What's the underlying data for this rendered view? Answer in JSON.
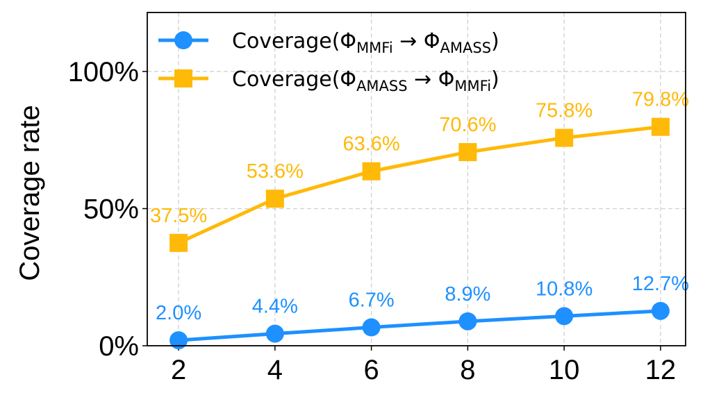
{
  "chart_data": {
    "type": "line",
    "title": "",
    "xlabel": "",
    "ylabel": "Coverage rate",
    "x": [
      2,
      4,
      6,
      8,
      10,
      12
    ],
    "xticks": [
      "2",
      "4",
      "6",
      "8",
      "10",
      "12"
    ],
    "yticks": [
      "0%",
      "50%",
      "100%"
    ],
    "ytick_values": [
      0,
      50,
      100
    ],
    "xlim": [
      1.35,
      12.52
    ],
    "ylim": [
      0,
      121.5
    ],
    "grid": true,
    "legend_position": "top-left",
    "series": [
      {
        "name": "Coverage(Φ_MMFi → Φ_AMASS)",
        "color": "#1e90ff",
        "marker": "circle",
        "values": [
          2.0,
          4.4,
          6.7,
          8.9,
          10.8,
          12.7
        ],
        "labels": [
          "2.0%",
          "4.4%",
          "6.7%",
          "8.9%",
          "10.8%",
          "12.7%"
        ]
      },
      {
        "name": "Coverage(Φ_AMASS → Φ_MMFi)",
        "color": "#ffb908",
        "marker": "square",
        "values": [
          37.5,
          53.6,
          63.6,
          70.6,
          75.8,
          79.8
        ],
        "labels": [
          "37.5%",
          "53.6%",
          "63.6%",
          "70.6%",
          "75.8%",
          "79.8%"
        ]
      }
    ]
  }
}
